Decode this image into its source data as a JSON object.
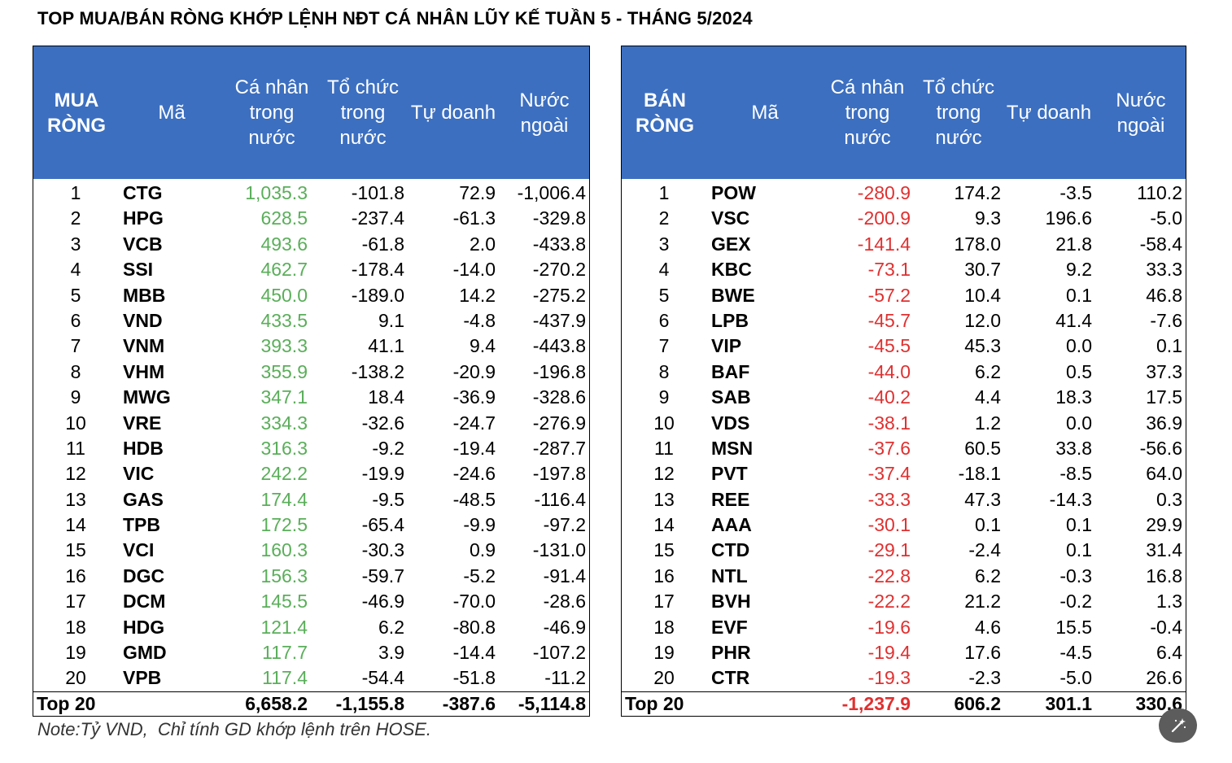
{
  "title": "TOP MUA/BÁN RÒNG KHỚP LỆNH NĐT CÁ NHÂN LŨY KẾ TUẦN 5 - THÁNG 5/2024",
  "note": "Note:Tỷ VND,  Chỉ tính GD khớp lệnh trên HOSE.",
  "colors": {
    "header_bg": "#3c6fc0",
    "positive": "#5aae5a",
    "negative": "#e03030"
  },
  "buy": {
    "headers": {
      "rank": "MUA\nRÒNG",
      "code": "Mã",
      "individual": "Cá nhân\ntrong\nnước",
      "institution": "Tổ chức\ntrong\nnước",
      "proprietary": "Tự doanh",
      "foreign": "Nước\nngoài"
    },
    "rows": [
      {
        "rank": "1",
        "code": "CTG",
        "individual": "1,035.3",
        "institution": "-101.8",
        "proprietary": "72.9",
        "foreign": "-1,006.4"
      },
      {
        "rank": "2",
        "code": "HPG",
        "individual": "628.5",
        "institution": "-237.4",
        "proprietary": "-61.3",
        "foreign": "-329.8"
      },
      {
        "rank": "3",
        "code": "VCB",
        "individual": "493.6",
        "institution": "-61.8",
        "proprietary": "2.0",
        "foreign": "-433.8"
      },
      {
        "rank": "4",
        "code": "SSI",
        "individual": "462.7",
        "institution": "-178.4",
        "proprietary": "-14.0",
        "foreign": "-270.2"
      },
      {
        "rank": "5",
        "code": "MBB",
        "individual": "450.0",
        "institution": "-189.0",
        "proprietary": "14.2",
        "foreign": "-275.2"
      },
      {
        "rank": "6",
        "code": "VND",
        "individual": "433.5",
        "institution": "9.1",
        "proprietary": "-4.8",
        "foreign": "-437.9"
      },
      {
        "rank": "7",
        "code": "VNM",
        "individual": "393.3",
        "institution": "41.1",
        "proprietary": "9.4",
        "foreign": "-443.8"
      },
      {
        "rank": "8",
        "code": "VHM",
        "individual": "355.9",
        "institution": "-138.2",
        "proprietary": "-20.9",
        "foreign": "-196.8"
      },
      {
        "rank": "9",
        "code": "MWG",
        "individual": "347.1",
        "institution": "18.4",
        "proprietary": "-36.9",
        "foreign": "-328.6"
      },
      {
        "rank": "10",
        "code": "VRE",
        "individual": "334.3",
        "institution": "-32.6",
        "proprietary": "-24.7",
        "foreign": "-276.9"
      },
      {
        "rank": "11",
        "code": "HDB",
        "individual": "316.3",
        "institution": "-9.2",
        "proprietary": "-19.4",
        "foreign": "-287.7"
      },
      {
        "rank": "12",
        "code": "VIC",
        "individual": "242.2",
        "institution": "-19.9",
        "proprietary": "-24.6",
        "foreign": "-197.8"
      },
      {
        "rank": "13",
        "code": "GAS",
        "individual": "174.4",
        "institution": "-9.5",
        "proprietary": "-48.5",
        "foreign": "-116.4"
      },
      {
        "rank": "14",
        "code": "TPB",
        "individual": "172.5",
        "institution": "-65.4",
        "proprietary": "-9.9",
        "foreign": "-97.2"
      },
      {
        "rank": "15",
        "code": "VCI",
        "individual": "160.3",
        "institution": "-30.3",
        "proprietary": "0.9",
        "foreign": "-131.0"
      },
      {
        "rank": "16",
        "code": "DGC",
        "individual": "156.3",
        "institution": "-59.7",
        "proprietary": "-5.2",
        "foreign": "-91.4"
      },
      {
        "rank": "17",
        "code": "DCM",
        "individual": "145.5",
        "institution": "-46.9",
        "proprietary": "-70.0",
        "foreign": "-28.6"
      },
      {
        "rank": "18",
        "code": "HDG",
        "individual": "121.4",
        "institution": "6.2",
        "proprietary": "-80.8",
        "foreign": "-46.9"
      },
      {
        "rank": "19",
        "code": "GMD",
        "individual": "117.7",
        "institution": "3.9",
        "proprietary": "-14.4",
        "foreign": "-107.2"
      },
      {
        "rank": "20",
        "code": "VPB",
        "individual": "117.4",
        "institution": "-54.4",
        "proprietary": "-51.8",
        "foreign": "-11.2"
      }
    ],
    "total": {
      "label": "Top 20",
      "individual": "6,658.2",
      "institution": "-1,155.8",
      "proprietary": "-387.6",
      "foreign": "-5,114.8"
    }
  },
  "sell": {
    "headers": {
      "rank": "BÁN\nRÒNG",
      "code": "Mã",
      "individual": "Cá nhân\ntrong\nnước",
      "institution": "Tổ chức\ntrong\nnước",
      "proprietary": "Tự doanh",
      "foreign": "Nước\nngoài"
    },
    "rows": [
      {
        "rank": "1",
        "code": "POW",
        "individual": "-280.9",
        "institution": "174.2",
        "proprietary": "-3.5",
        "foreign": "110.2"
      },
      {
        "rank": "2",
        "code": "VSC",
        "individual": "-200.9",
        "institution": "9.3",
        "proprietary": "196.6",
        "foreign": "-5.0"
      },
      {
        "rank": "3",
        "code": "GEX",
        "individual": "-141.4",
        "institution": "178.0",
        "proprietary": "21.8",
        "foreign": "-58.4"
      },
      {
        "rank": "4",
        "code": "KBC",
        "individual": "-73.1",
        "institution": "30.7",
        "proprietary": "9.2",
        "foreign": "33.3"
      },
      {
        "rank": "5",
        "code": "BWE",
        "individual": "-57.2",
        "institution": "10.4",
        "proprietary": "0.1",
        "foreign": "46.8"
      },
      {
        "rank": "6",
        "code": "LPB",
        "individual": "-45.7",
        "institution": "12.0",
        "proprietary": "41.4",
        "foreign": "-7.6"
      },
      {
        "rank": "7",
        "code": "VIP",
        "individual": "-45.5",
        "institution": "45.3",
        "proprietary": "0.0",
        "foreign": "0.1"
      },
      {
        "rank": "8",
        "code": "BAF",
        "individual": "-44.0",
        "institution": "6.2",
        "proprietary": "0.5",
        "foreign": "37.3"
      },
      {
        "rank": "9",
        "code": "SAB",
        "individual": "-40.2",
        "institution": "4.4",
        "proprietary": "18.3",
        "foreign": "17.5"
      },
      {
        "rank": "10",
        "code": "VDS",
        "individual": "-38.1",
        "institution": "1.2",
        "proprietary": "0.0",
        "foreign": "36.9"
      },
      {
        "rank": "11",
        "code": "MSN",
        "individual": "-37.6",
        "institution": "60.5",
        "proprietary": "33.8",
        "foreign": "-56.6"
      },
      {
        "rank": "12",
        "code": "PVT",
        "individual": "-37.4",
        "institution": "-18.1",
        "proprietary": "-8.5",
        "foreign": "64.0"
      },
      {
        "rank": "13",
        "code": "REE",
        "individual": "-33.3",
        "institution": "47.3",
        "proprietary": "-14.3",
        "foreign": "0.3"
      },
      {
        "rank": "14",
        "code": "AAA",
        "individual": "-30.1",
        "institution": "0.1",
        "proprietary": "0.1",
        "foreign": "29.9"
      },
      {
        "rank": "15",
        "code": "CTD",
        "individual": "-29.1",
        "institution": "-2.4",
        "proprietary": "0.1",
        "foreign": "31.4"
      },
      {
        "rank": "16",
        "code": "NTL",
        "individual": "-22.8",
        "institution": "6.2",
        "proprietary": "-0.3",
        "foreign": "16.8"
      },
      {
        "rank": "17",
        "code": "BVH",
        "individual": "-22.2",
        "institution": "21.2",
        "proprietary": "-0.2",
        "foreign": "1.3"
      },
      {
        "rank": "18",
        "code": "EVF",
        "individual": "-19.6",
        "institution": "4.6",
        "proprietary": "15.5",
        "foreign": "-0.4"
      },
      {
        "rank": "19",
        "code": "PHR",
        "individual": "-19.4",
        "institution": "17.6",
        "proprietary": "-4.5",
        "foreign": "6.4"
      },
      {
        "rank": "20",
        "code": "CTR",
        "individual": "-19.3",
        "institution": "-2.3",
        "proprietary": "-5.0",
        "foreign": "26.6"
      }
    ],
    "total": {
      "label": "Top 20",
      "individual": "-1,237.9",
      "institution": "606.2",
      "proprietary": "301.1",
      "foreign": "330.6"
    }
  },
  "fab_icon": "magic-wand-icon"
}
